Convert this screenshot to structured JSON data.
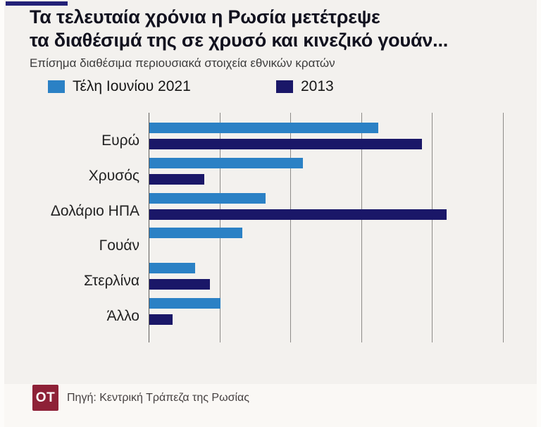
{
  "header": {
    "title_line1": "Τα τελευταία χρόνια η Ρωσία μετέτρεψε",
    "title_line2": "τα διαθέσιμά της σε χρυσό και κινεζικό γουάν...",
    "subtitle": "Επίσημα διαθέσιμα περιουσιακά στοιχεία εθνικών κρατών"
  },
  "chart_data": {
    "type": "bar",
    "orientation": "horizontal",
    "title": "Τα τελευταία χρόνια η Ρωσία μετέτρεψε τα διαθέσιμά της σε χρυσό και κινεζικό γουάν...",
    "subtitle": "Επίσημα διαθέσιμα περιουσιακά στοιχεία εθνικών κρατών",
    "categories": [
      "Ευρώ",
      "Χρυσός",
      "Δολάριο ΗΠΑ",
      "Γουάν",
      "Στερλίνα",
      "Άλλο"
    ],
    "series": [
      {
        "name": "Τέλη Ιουνίου 2021",
        "color": "#2b81c5",
        "values": [
          32.3,
          21.7,
          16.4,
          13.1,
          6.5,
          10.0
        ]
      },
      {
        "name": "2013",
        "color": "#1a1768",
        "values": [
          38.5,
          7.8,
          41.9,
          0,
          8.5,
          3.3
        ]
      }
    ],
    "xlim": [
      0,
      50
    ],
    "gridline_step": 10,
    "grid": true,
    "tick_labels_shown": false,
    "legend_position": "top",
    "xlabel": "",
    "ylabel": ""
  },
  "colors": {
    "background": "#f3f1ee",
    "accent_bar": "#232178",
    "series_2021": "#2b81c5",
    "series_2013": "#1a1768",
    "logo_background": "#8e2137",
    "gridline": "#8d8b88"
  },
  "footer": {
    "logo": "OT",
    "source": "Πηγή: Κεντρική Τράπεζα της Ρωσίας"
  }
}
